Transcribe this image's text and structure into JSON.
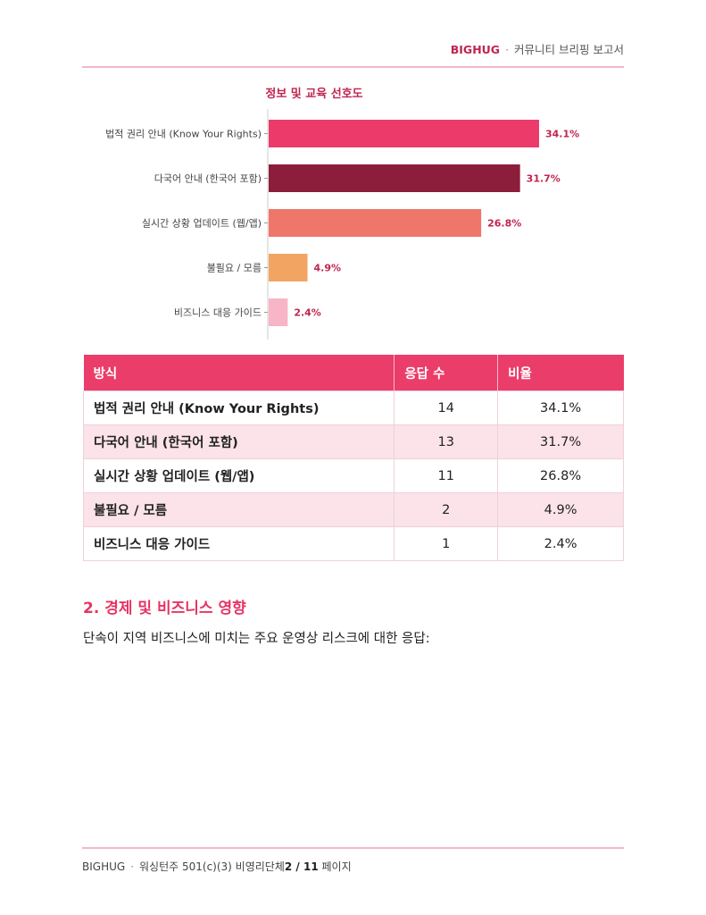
{
  "header": {
    "brand": "BIGHUG",
    "separator": "·",
    "subtitle": "커뮤니티 브리핑 보고서"
  },
  "colors": {
    "accent": "#ea3d6a",
    "brand": "#c0254f",
    "divider": "#f2b8c6"
  },
  "chart_data": {
    "type": "bar",
    "orientation": "horizontal",
    "title": "정보 및 교육 선호도",
    "categories": [
      "법적 권리 안내 (Know Your Rights)",
      "다국어 안내 (한국어 포함)",
      "실시간 상황 업데이트 (웹/앱)",
      "불필요 / 모름",
      "비즈니스 대응 가이드"
    ],
    "values": [
      34.1,
      31.7,
      26.8,
      4.9,
      2.4
    ],
    "data_labels": [
      "34.1%",
      "31.7%",
      "26.8%",
      "4.9%",
      "2.4%"
    ],
    "bar_colors": [
      "#ec3b6b",
      "#8c1e3c",
      "#ef766a",
      "#f2a562",
      "#f7b5c7"
    ],
    "xlim": [
      0,
      34.1
    ],
    "grid": false,
    "legend": "none"
  },
  "table": {
    "headers": [
      "방식",
      "응답 수",
      "비율"
    ],
    "rows": [
      [
        "법적 권리 안내 (Know Your Rights)",
        "14",
        "34.1%"
      ],
      [
        "다국어 안내 (한국어 포함)",
        "13",
        "31.7%"
      ],
      [
        "실시간 상황 업데이트 (웹/앱)",
        "11",
        "26.8%"
      ],
      [
        "불필요 / 모름",
        "2",
        "4.9%"
      ],
      [
        "비즈니스 대응 가이드",
        "1",
        "2.4%"
      ]
    ]
  },
  "section": {
    "title": "2. 경제 및 비즈니스 영향",
    "text": "단속이 지역 비즈니스에 미치는 주요 운영상 리스크에 대한 응답:"
  },
  "footer": {
    "brand": "BIGHUG",
    "separator": "·",
    "org": "워싱턴주 501(c)(3) 비영리단체",
    "page": "2 / 11",
    "page_suffix": " 페이지"
  }
}
